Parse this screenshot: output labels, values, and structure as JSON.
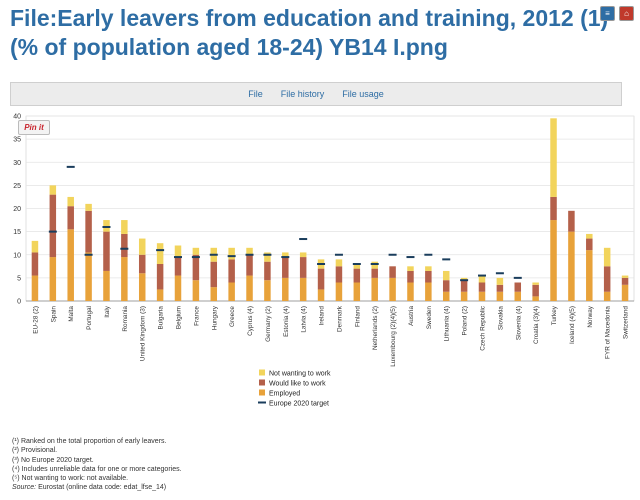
{
  "page": {
    "title": "File:Early leavers from education and training, 2012 (1) (% of population aged 18-24) YB14 I.png"
  },
  "tabs": [
    "File",
    "File history",
    "File usage"
  ],
  "pin_button_label": "Pin it",
  "icons": [
    "file-icon-a",
    "pdf-icon"
  ],
  "colors": {
    "not_wanting": "#f2d45c",
    "would_like": "#b4604a",
    "employed": "#e8a23a",
    "target": "#1a3d5c",
    "link": "#2e6da4"
  },
  "chart_data": {
    "type": "bar",
    "stacked": true,
    "categories": [
      "EU-28 (2)",
      "Spain",
      "Malta",
      "Portugal",
      "Italy",
      "Romania",
      "United Kingdom (3)",
      "Bulgaria",
      "Belgium",
      "France",
      "Hungary",
      "Greece",
      "Cyprus (4)",
      "Germany (2)",
      "Estonia (4)",
      "Latvia (4)",
      "Ireland",
      "Denmark",
      "Finland",
      "Netherlands (2)",
      "Luxembourg (2)(4)(5)",
      "Austria",
      "Sweden",
      "Lithuania (4)",
      "Poland (2)",
      "Czech Republic",
      "Slovakia",
      "Slovenia (4)",
      "Croatia (3)(4)",
      "Turkey",
      "Iceland (4)(5)",
      "Norway",
      "FYR of Macedonia",
      "Switzerland"
    ],
    "series": [
      {
        "name": "Employed",
        "values": [
          5.5,
          9.5,
          15.5,
          10.5,
          6.5,
          9.5,
          6.0,
          2.5,
          5.5,
          4.5,
          3.0,
          4.0,
          5.5,
          4.5,
          5.0,
          5.0,
          2.5,
          4.0,
          4.0,
          5.0,
          5.0,
          4.0,
          4.0,
          2.0,
          2.0,
          2.0,
          2.0,
          2.0,
          1.0,
          17.5,
          15.0,
          11.0,
          2.0,
          3.5
        ]
      },
      {
        "name": "Would like to work",
        "values": [
          5.0,
          13.5,
          5.0,
          9.0,
          8.5,
          5.0,
          4.0,
          5.5,
          4.0,
          5.5,
          5.5,
          5.0,
          4.5,
          4.0,
          4.5,
          4.5,
          4.5,
          3.5,
          3.0,
          2.0,
          2.5,
          2.5,
          2.5,
          2.5,
          2.5,
          2.0,
          1.5,
          2.0,
          2.5,
          5.0,
          4.5,
          2.5,
          5.5,
          1.5
        ]
      },
      {
        "name": "Not wanting to work",
        "values": [
          2.5,
          2.0,
          2.0,
          1.5,
          2.5,
          3.0,
          3.5,
          4.5,
          2.5,
          1.5,
          3.0,
          2.5,
          1.5,
          2.0,
          1.0,
          1.0,
          2.0,
          1.5,
          1.0,
          1.5,
          0.0,
          1.0,
          1.0,
          2.0,
          0.5,
          1.5,
          1.5,
          0.0,
          0.5,
          17.0,
          0.0,
          1.0,
          4.0,
          0.5
        ]
      }
    ],
    "target": [
      null,
      15.0,
      29.0,
      10.0,
      16.0,
      11.3,
      null,
      11.0,
      9.5,
      9.5,
      10.0,
      9.7,
      10.0,
      10.0,
      9.5,
      13.4,
      8.0,
      10.0,
      8.0,
      8.0,
      10.0,
      9.5,
      10.0,
      9.0,
      4.5,
      5.5,
      6.0,
      5.0,
      null,
      null,
      null,
      null,
      null,
      null
    ],
    "ylim": [
      0,
      40
    ],
    "yticks": [
      0,
      5,
      10,
      15,
      20,
      25,
      30,
      35,
      40
    ],
    "legend": [
      "Not wanting to work",
      "Would like to work",
      "Employed",
      "Europe 2020 target"
    ],
    "legend_position": "bottom-center",
    "grid": true
  },
  "notes": [
    "(¹) Ranked on the total proportion of early leavers.",
    "(²) Provisional.",
    "(³) No Europe 2020 target.",
    "(⁴) Includes unreliable data for one or more categories.",
    "(⁵) Not wanting to work: not available."
  ],
  "source": {
    "prefix": "Source:",
    "text": " Eurostat (online data code: edat_lfse_14)"
  }
}
